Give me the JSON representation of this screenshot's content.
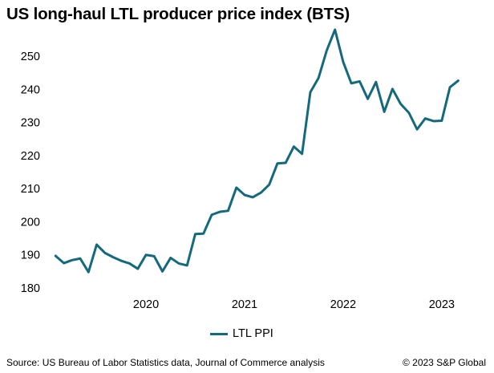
{
  "title": "US long-haul LTL producer price index (BTS)",
  "legend_label": "LTL PPI",
  "source": "Source: US Bureau of Labor Statistics data, Journal of Commerce analysis",
  "copyright": "© 2023 S&P Global",
  "colors": {
    "series": "#15697d",
    "text": "#000000"
  },
  "chart_data": {
    "type": "line",
    "title": "US long-haul LTL producer price index (BTS)",
    "xlabel": "",
    "ylabel": "",
    "ylim": [
      180,
      258
    ],
    "yticks": [
      180,
      190,
      200,
      210,
      220,
      230,
      240,
      250
    ],
    "xticks": [
      {
        "label": "2020",
        "x": 2020.0
      },
      {
        "label": "2021",
        "x": 2021.0
      },
      {
        "label": "2022",
        "x": 2022.0
      },
      {
        "label": "2023",
        "x": 2023.0
      }
    ],
    "xlim": [
      2019.04,
      2023.4
    ],
    "grid": false,
    "legend_position": "bottom-center",
    "series": [
      {
        "name": "LTL PPI",
        "x": [
          2019.083,
          2019.167,
          2019.25,
          2019.333,
          2019.417,
          2019.5,
          2019.583,
          2019.667,
          2019.75,
          2019.833,
          2019.917,
          2020.0,
          2020.083,
          2020.167,
          2020.25,
          2020.333,
          2020.417,
          2020.5,
          2020.583,
          2020.667,
          2020.75,
          2020.833,
          2020.917,
          2021.0,
          2021.083,
          2021.167,
          2021.25,
          2021.333,
          2021.417,
          2021.5,
          2021.583,
          2021.667,
          2021.75,
          2021.833,
          2021.917,
          2022.0,
          2022.083,
          2022.167,
          2022.25,
          2022.333,
          2022.417,
          2022.5,
          2022.583,
          2022.667,
          2022.75,
          2022.833,
          2022.917,
          2023.0,
          2023.083,
          2023.167
        ],
        "values": [
          189.7,
          187.5,
          188.4,
          188.9,
          184.8,
          193.1,
          190.6,
          189.3,
          188.2,
          187.4,
          185.8,
          190.0,
          189.6,
          185.0,
          189.1,
          187.4,
          186.8,
          196.3,
          196.4,
          202.1,
          203.0,
          203.3,
          210.3,
          208.1,
          207.4,
          208.8,
          211.2,
          217.6,
          217.8,
          222.7,
          220.5,
          239.1,
          243.4,
          251.7,
          258.0,
          248.3,
          241.8,
          242.4,
          237.1,
          242.2,
          233.2,
          240.1,
          235.6,
          232.9,
          227.9,
          231.2,
          230.4,
          230.5,
          240.6,
          242.6
        ]
      }
    ]
  }
}
